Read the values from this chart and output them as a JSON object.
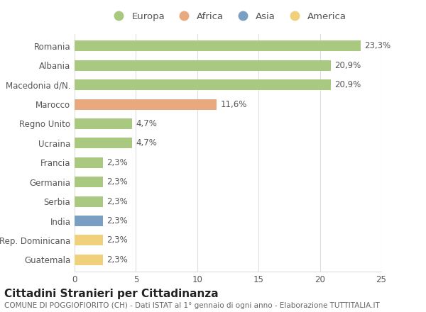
{
  "title": "Cittadini Stranieri per Cittadinanza",
  "subtitle": "COMUNE DI POGGIOFIORITO (CH) - Dati ISTAT al 1° gennaio di ogni anno - Elaborazione TUTTITALIA.IT",
  "countries": [
    "Romania",
    "Albania",
    "Macedonia d/N.",
    "Marocco",
    "Regno Unito",
    "Ucraina",
    "Francia",
    "Germania",
    "Serbia",
    "India",
    "Rep. Dominicana",
    "Guatemala"
  ],
  "values": [
    23.3,
    20.9,
    20.9,
    11.6,
    4.7,
    4.7,
    2.3,
    2.3,
    2.3,
    2.3,
    2.3,
    2.3
  ],
  "labels": [
    "23,3%",
    "20,9%",
    "20,9%",
    "11,6%",
    "4,7%",
    "4,7%",
    "2,3%",
    "2,3%",
    "2,3%",
    "2,3%",
    "2,3%",
    "2,3%"
  ],
  "continents": [
    "Europa",
    "Europa",
    "Europa",
    "Africa",
    "Europa",
    "Europa",
    "Europa",
    "Europa",
    "Europa",
    "Asia",
    "America",
    "America"
  ],
  "colors": {
    "Europa": "#a8c97f",
    "Africa": "#e8a97e",
    "Asia": "#7a9fc2",
    "America": "#f0d07a"
  },
  "legend_order": [
    "Europa",
    "Africa",
    "Asia",
    "America"
  ],
  "xlim": [
    0,
    25
  ],
  "xticks": [
    0,
    5,
    10,
    15,
    20,
    25
  ],
  "background_color": "#ffffff",
  "grid_color": "#dddddd",
  "bar_height": 0.55,
  "label_fontsize": 8.5,
  "title_fontsize": 11,
  "subtitle_fontsize": 7.5,
  "tick_fontsize": 8.5,
  "legend_fontsize": 9.5
}
